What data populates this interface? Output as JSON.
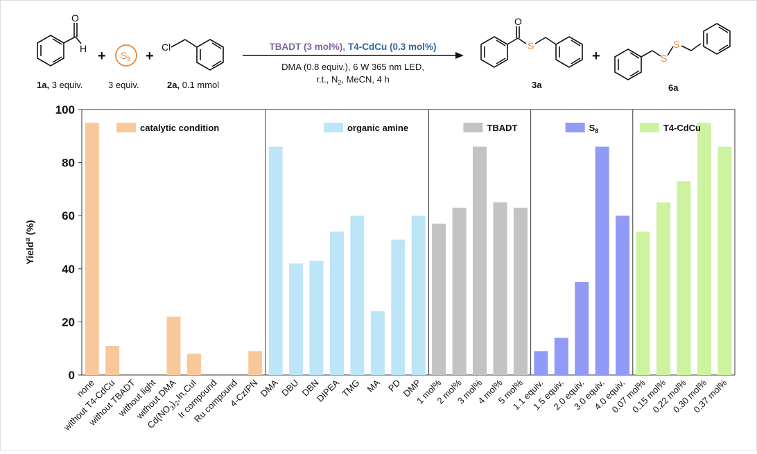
{
  "scheme": {
    "reagent_1": {
      "label_bold": "1a,",
      "label_rest": " 3 equiv.",
      "aldehyde_h": "H",
      "aldehyde_o": "O"
    },
    "reagent_s8": {
      "glyph": "S",
      "sub": "8",
      "label": "3 equiv.",
      "color": "#e8863a"
    },
    "reagent_2": {
      "label_bold": "2a,",
      "label_rest": " 0.1 mmol",
      "atom": "Cl"
    },
    "plus": "+",
    "cond_catalyst_a": "TBADT (3 mol%),",
    "cond_catalyst_b": "T4-CdCu (0.3 mol%)",
    "cond_line2": "DMA (0.8 equiv.), 6 W 365 nm LED,",
    "cond_line3_a": "r.t., N",
    "cond_line3_sub": "2",
    "cond_line3_b": ", MeCN, 4 h",
    "product_3a": {
      "label": "3a",
      "atom_o": "O",
      "atom_s": "S"
    },
    "product_6a": {
      "label": "6a",
      "atom_s": "S"
    }
  },
  "chart_data": {
    "type": "bar",
    "ylabel": "Yield",
    "ylabel_sup": "a",
    "ylabel_unit": " (%)",
    "ylim": [
      0,
      100
    ],
    "yticks": [
      0,
      20,
      40,
      60,
      80,
      100
    ],
    "groups": [
      {
        "name": "catalytic condition",
        "color": "#f9c89a",
        "categories": [
          "none",
          "without T4-CdCu",
          "without TBADT",
          "without light",
          "without DMA",
          "Cd(NO3)2,In,CuI",
          "Ir compound",
          "Ru compound",
          "4-CzIPN"
        ],
        "values": [
          95,
          11,
          0,
          0,
          22,
          8,
          0,
          0,
          9
        ]
      },
      {
        "name": "organic amine",
        "color": "#bde5f8",
        "categories": [
          "DMA",
          "DBU",
          "DBN",
          "DIPEA",
          "TMG",
          "MA",
          "PD",
          "DMP"
        ],
        "values": [
          86,
          42,
          43,
          54,
          60,
          24,
          51,
          60
        ]
      },
      {
        "name": "TBADT",
        "color": "#c3c3c3",
        "categories": [
          "1 mol%",
          "2 mol%",
          "3 mol%",
          "4 mol%",
          "5 mol%"
        ],
        "values": [
          57,
          63,
          86,
          65,
          63
        ]
      },
      {
        "name": "S8",
        "color": "#919bf7",
        "categories": [
          "1.1 equiv.",
          "1.5 equiv.",
          "2.0 equiv.",
          "3.0 equiv.",
          "4.0 equiv."
        ],
        "values": [
          9,
          14,
          35,
          86,
          60
        ]
      },
      {
        "name": "T4-CdCu",
        "color": "#cdf2a0",
        "categories": [
          "0.07 mol%",
          "0.15 mol%",
          "0.22 mol%",
          "0.30 mol%",
          "0.37 mol%"
        ],
        "values": [
          54,
          65,
          73,
          95,
          86
        ]
      }
    ]
  }
}
